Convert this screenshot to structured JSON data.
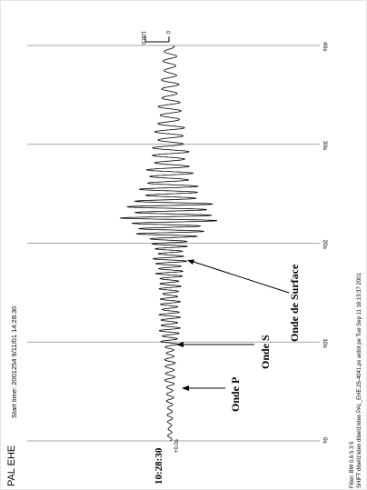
{
  "station_label": "PAL EHE",
  "start_time": "Start time: 2001254  9/11/01 14:28:30",
  "left_time_label": "10:28:30",
  "offset_label": "+0.0s",
  "scale_labels": [
    "100.0",
    "0"
  ],
  "footer": {
    "filter": "Filter: BW 0.6 5 3 5",
    "file_line": "SHIFT  dibeli1\\ideo dibeli1\\ideo PAL_EHE.25-4041.ps ardot pe Tue Sep 11 16:13:37 2001"
  },
  "annotations": {
    "onde_p": "Onde P",
    "onde_s": "Onde S",
    "onde_surface": "Onde de Surface"
  },
  "chart_data": {
    "type": "line",
    "title": "",
    "xlabel": "",
    "ylabel": "",
    "x_unit": "s",
    "xlim": [
      0,
      40
    ],
    "ylim": [
      -100,
      100
    ],
    "ticks": [
      {
        "value": 0,
        "label": "0s"
      },
      {
        "value": 10,
        "label": "10s"
      },
      {
        "value": 20,
        "label": "20s"
      },
      {
        "value": 30,
        "label": "30s"
      },
      {
        "value": 40,
        "label": "40s"
      }
    ],
    "grid": true,
    "series": [
      {
        "color": "#000000",
        "envelope_time": [
          0,
          3,
          5,
          7,
          8.5,
          9.5,
          10,
          12,
          15,
          17.5,
          18.5,
          19.5,
          20.5,
          21.5,
          22.5,
          23.5,
          24.5,
          26,
          28,
          30,
          33,
          36,
          40
        ],
        "envelope_amplitude": [
          4,
          6,
          8,
          12,
          10,
          10,
          20,
          22,
          20,
          30,
          35,
          30,
          55,
          80,
          100,
          95,
          70,
          55,
          42,
          35,
          25,
          18,
          12
        ],
        "period_time": [
          0,
          8,
          10,
          18,
          20,
          25,
          30,
          40
        ],
        "period": [
          0.7,
          0.7,
          0.55,
          0.5,
          0.5,
          0.6,
          0.8,
          1.0
        ]
      }
    ]
  }
}
